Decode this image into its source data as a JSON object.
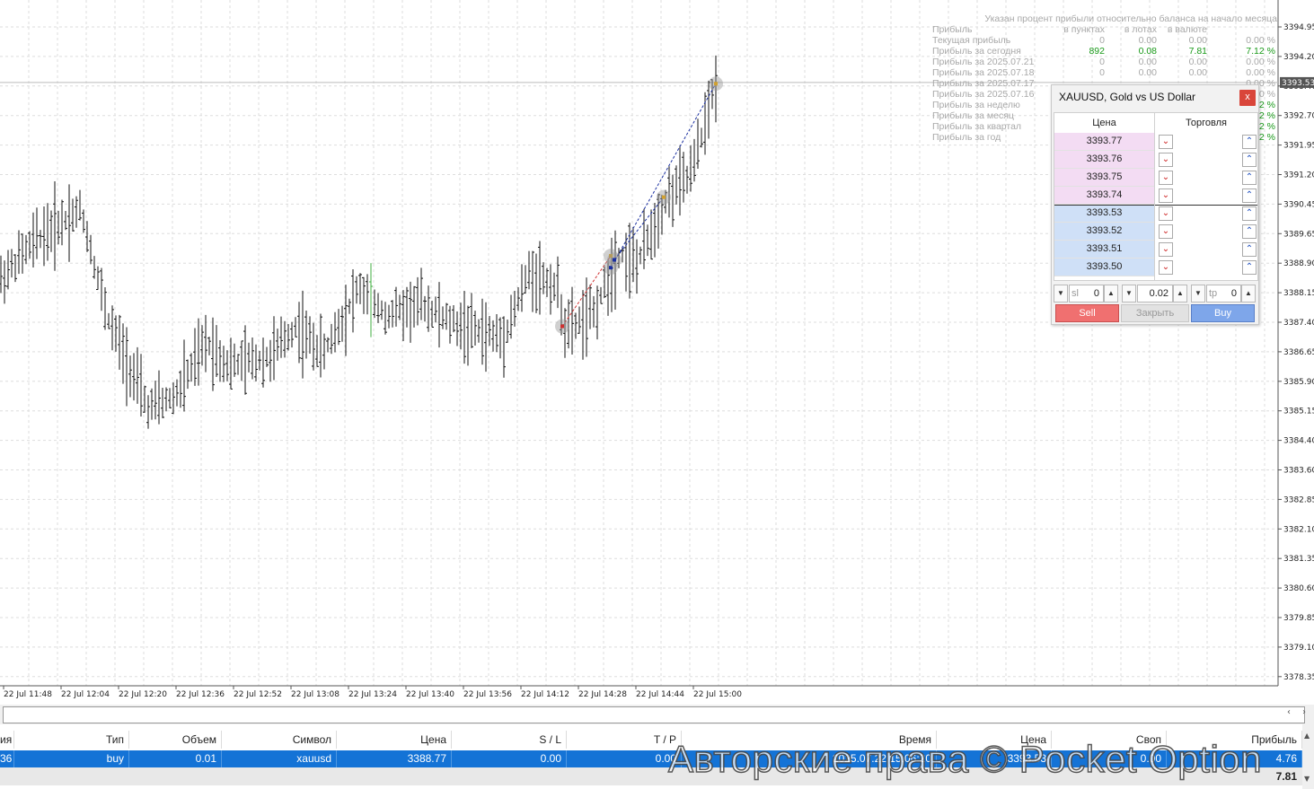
{
  "stats": {
    "note": "Указан процент прибыли относительно баланса на начало месяца",
    "header": [
      "Прибыль",
      "в пунктах",
      "в лотах",
      "в валюте",
      ""
    ],
    "rows": [
      [
        "Текущая прибыль",
        "0",
        "0.00",
        "0.00",
        "0.00 %"
      ],
      [
        "Прибыль за сегодня",
        "892",
        "0.08",
        "7.81",
        "7.12 %"
      ],
      [
        "Прибыль за 2025.07.21",
        "0",
        "0.00",
        "0.00",
        "0.00 %"
      ],
      [
        "Прибыль за 2025.07.18",
        "0",
        "0.00",
        "0.00",
        "0.00 %"
      ],
      [
        "Прибыль за 2025.07.17",
        "",
        "",
        "",
        "0.00 %"
      ],
      [
        "Прибыль за 2025.07.16",
        "",
        "",
        "",
        "0.00 %"
      ],
      [
        "Прибыль за неделю",
        "",
        "",
        "",
        "2 %"
      ],
      [
        "Прибыль за месяц",
        "",
        "",
        "",
        "2 %"
      ],
      [
        "Прибыль за квартал",
        "",
        "",
        "",
        "2 %"
      ],
      [
        "Прибыль за год",
        "",
        "",
        "",
        "2 %"
      ]
    ],
    "green_rows": [
      1,
      6,
      7,
      8,
      9
    ]
  },
  "panel": {
    "title": "XAUUSD, Gold vs US Dollar",
    "close_label": "x",
    "col_price": "Цена",
    "col_trade": "Торговля",
    "asks": [
      "3393.77",
      "3393.76",
      "3393.75",
      "3393.74"
    ],
    "bids": [
      "3393.53",
      "3393.52",
      "3393.51",
      "3393.50"
    ],
    "sl_placeholder": "sl",
    "sl_value": "0",
    "volume": "0.02",
    "tp_placeholder": "tp",
    "tp_value": "0",
    "sell_label": "Sell",
    "close_position_label": "Закрыть",
    "buy_label": "Buy"
  },
  "chart_data": {
    "type": "bar",
    "symbol": "XAUUSD",
    "current_price": "3393.53",
    "y_ticks": [
      "3394.95",
      "3394.20",
      "3393.40",
      "3392.70",
      "3391.95",
      "3391.20",
      "3390.45",
      "3389.65",
      "3388.90",
      "3388.15",
      "3387.40",
      "3386.65",
      "3385.90",
      "3385.15",
      "3384.40",
      "3383.60",
      "3382.85",
      "3382.10",
      "3381.35",
      "3380.60",
      "3379.85",
      "3379.10",
      "3378.35"
    ],
    "x_ticks": [
      "22 Jul 11:48",
      "22 Jul 12:04",
      "22 Jul 12:20",
      "22 Jul 12:36",
      "22 Jul 12:52",
      "22 Jul 13:08",
      "22 Jul 13:24",
      "22 Jul 13:40",
      "22 Jul 13:56",
      "22 Jul 14:12",
      "22 Jul 14:28",
      "22 Jul 14:44",
      "22 Jul 15:00"
    ],
    "ylim": [
      3378.35,
      3394.95
    ],
    "trades": [
      {
        "type": "buy",
        "open": 3387.3,
        "close": 3389.1
      },
      {
        "type": "buy",
        "open": 3388.8,
        "close": 3393.5
      },
      {
        "type": "buy",
        "open": 3389.0,
        "close": 3390.6
      }
    ]
  },
  "terminal": {
    "headers": [
      "ия",
      "Тип",
      "Объем",
      "Символ",
      "Цена",
      "S / L",
      "T / P",
      "Время",
      "Цена",
      "Своп",
      "Прибыль"
    ],
    "row": [
      "36",
      "buy",
      "0.01",
      "xauusd",
      "3388.77",
      "0.00",
      "0.00",
      "2025.07.22 15:06:20",
      "3393.53",
      "0.00",
      "4.76"
    ],
    "total": "7.81"
  },
  "watermark": "Авторские права © Pocket Option"
}
